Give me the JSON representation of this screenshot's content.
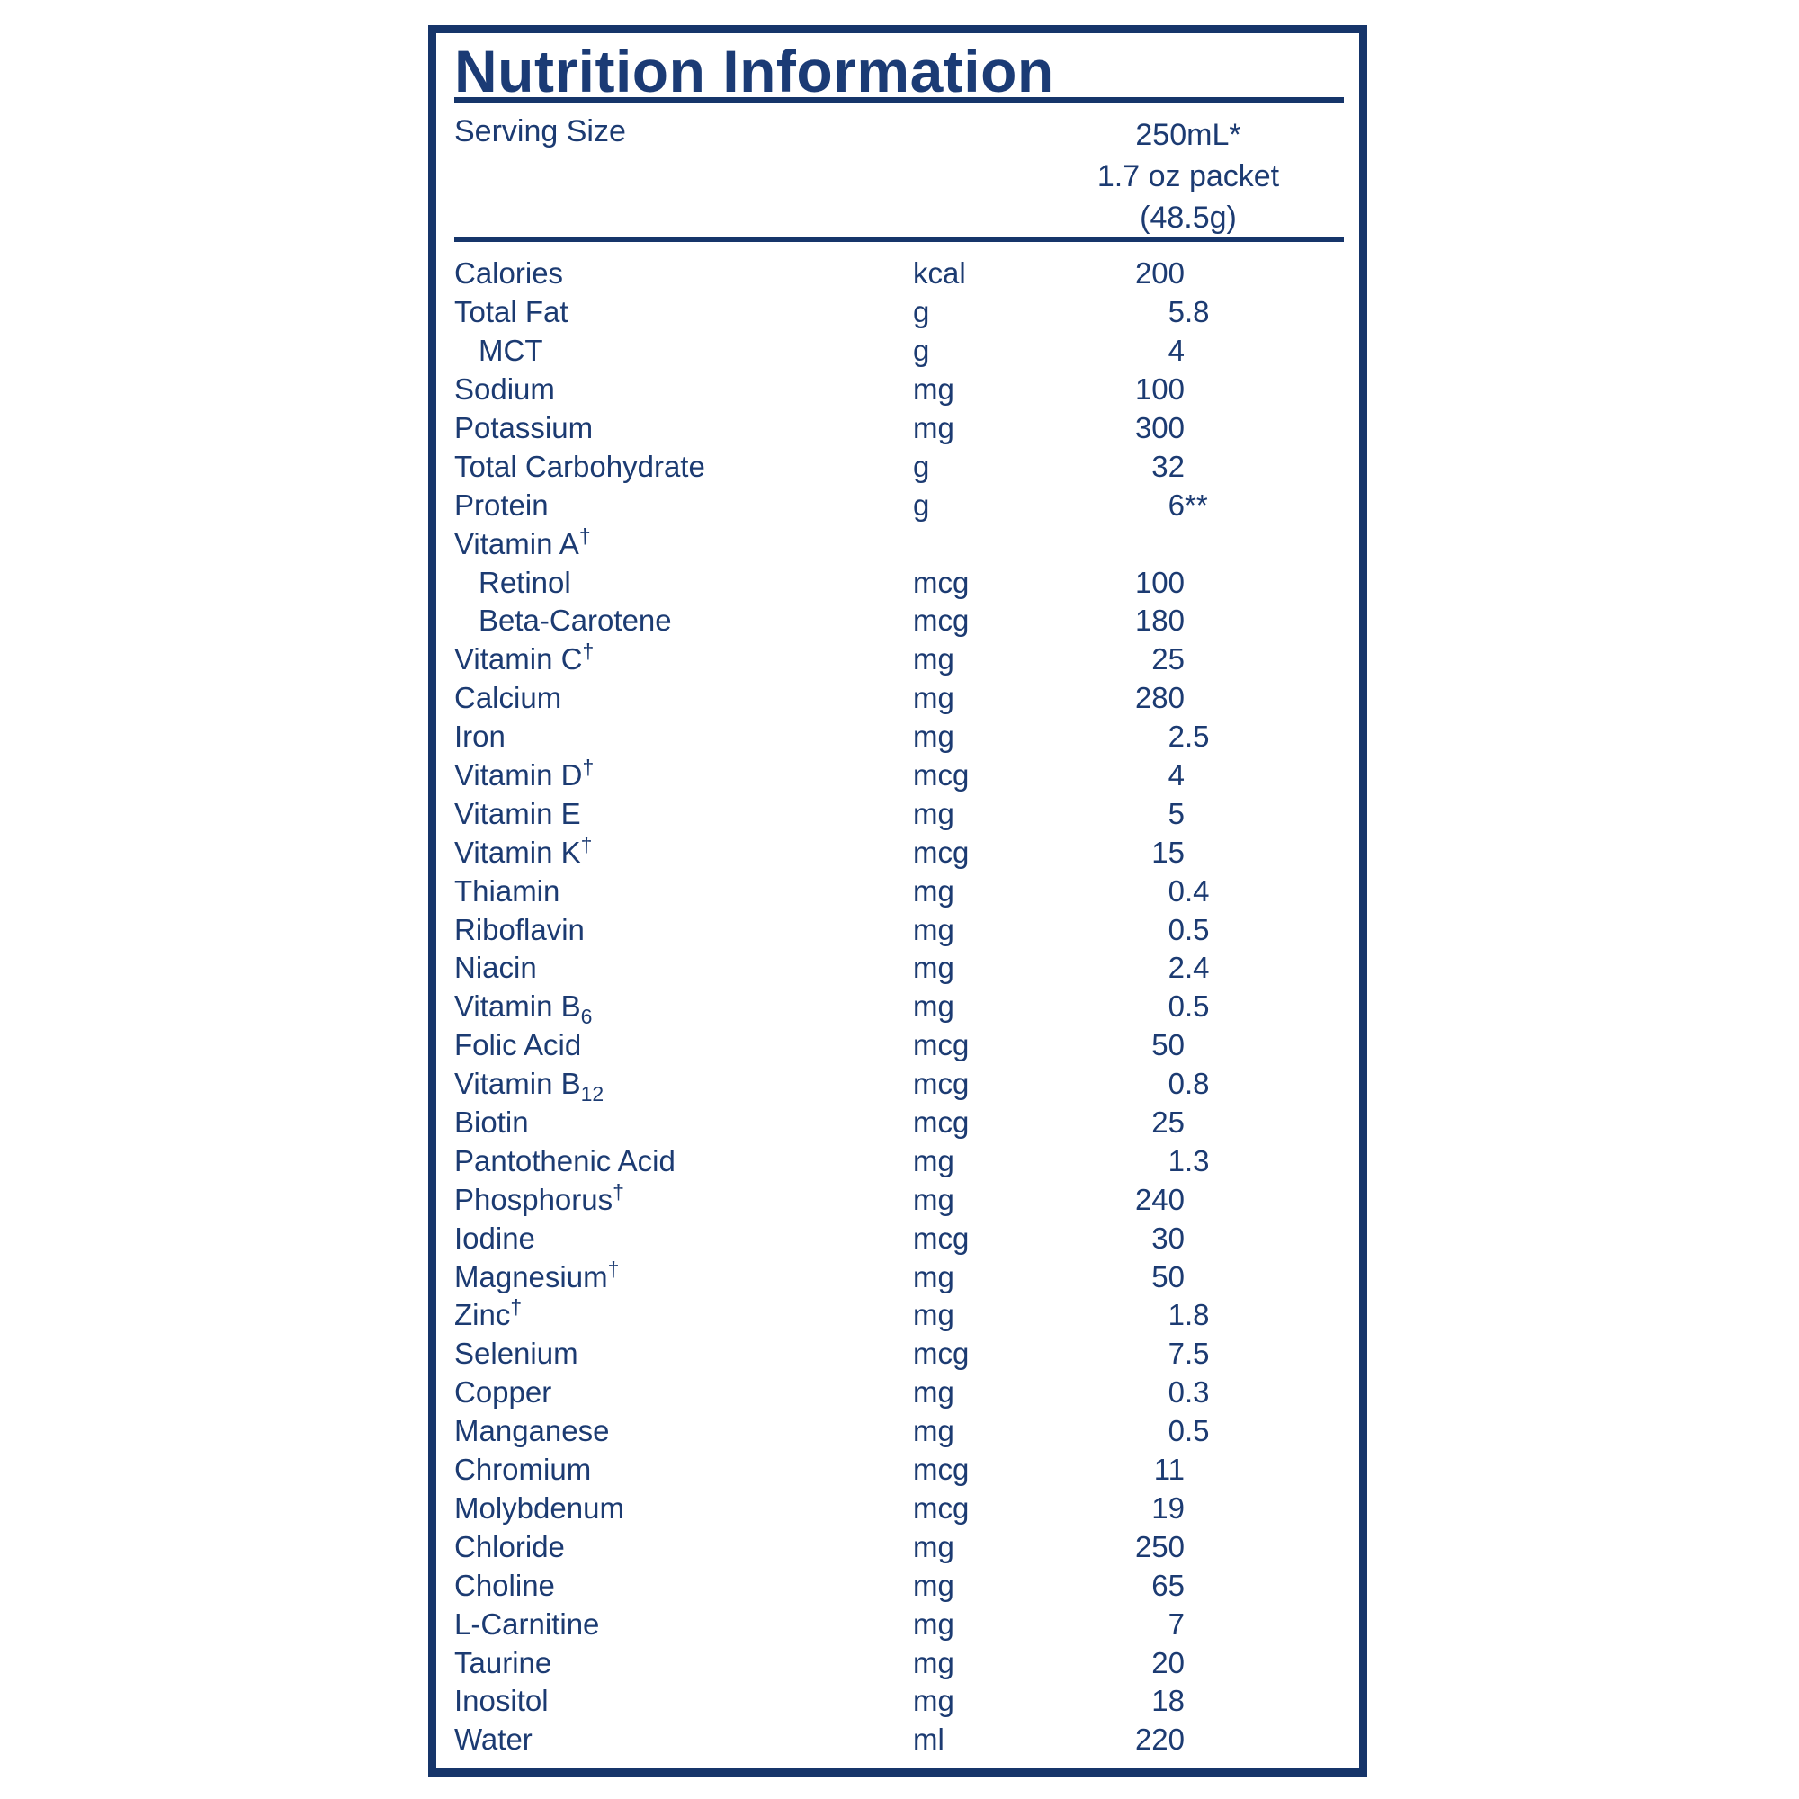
{
  "colors": {
    "navy_text": "#1b3b75",
    "navy_border": "#16356a"
  },
  "label": {
    "title": "Nutrition Information",
    "serving": {
      "label": "Serving Size",
      "lines": [
        "250mL*",
        "1.7 oz packet",
        "(48.5g)"
      ]
    },
    "rows": [
      {
        "name": "Calories",
        "sup": "",
        "sub": "",
        "indent": false,
        "unit": "kcal",
        "int": "200",
        "frac": ""
      },
      {
        "name": "Total Fat",
        "sup": "",
        "sub": "",
        "indent": false,
        "unit": "g",
        "int": "5",
        "frac": ".8"
      },
      {
        "name": "MCT",
        "sup": "",
        "sub": "",
        "indent": true,
        "unit": "g",
        "int": "4",
        "frac": ""
      },
      {
        "name": "Sodium",
        "sup": "",
        "sub": "",
        "indent": false,
        "unit": "mg",
        "int": "100",
        "frac": ""
      },
      {
        "name": "Potassium",
        "sup": "",
        "sub": "",
        "indent": false,
        "unit": "mg",
        "int": "300",
        "frac": ""
      },
      {
        "name": "Total Carbohydrate",
        "sup": "",
        "sub": "",
        "indent": false,
        "unit": "g",
        "int": "32",
        "frac": ""
      },
      {
        "name": "Protein",
        "sup": "",
        "sub": "",
        "indent": false,
        "unit": "g",
        "int": "6",
        "frac": "**"
      },
      {
        "name": "Vitamin A",
        "sup": "†",
        "sub": "",
        "indent": false,
        "unit": "",
        "int": "",
        "frac": ""
      },
      {
        "name": "Retinol",
        "sup": "",
        "sub": "",
        "indent": true,
        "unit": "mcg",
        "int": "100",
        "frac": ""
      },
      {
        "name": "Beta-Carotene",
        "sup": "",
        "sub": "",
        "indent": true,
        "unit": "mcg",
        "int": "180",
        "frac": ""
      },
      {
        "name": "Vitamin C",
        "sup": "†",
        "sub": "",
        "indent": false,
        "unit": "mg",
        "int": "25",
        "frac": ""
      },
      {
        "name": "Calcium",
        "sup": "",
        "sub": "",
        "indent": false,
        "unit": "mg",
        "int": "280",
        "frac": ""
      },
      {
        "name": "Iron",
        "sup": "",
        "sub": "",
        "indent": false,
        "unit": "mg",
        "int": "2",
        "frac": ".5"
      },
      {
        "name": "Vitamin D",
        "sup": "†",
        "sub": "",
        "indent": false,
        "unit": "mcg",
        "int": "4",
        "frac": ""
      },
      {
        "name": "Vitamin E",
        "sup": "",
        "sub": "",
        "indent": false,
        "unit": "mg",
        "int": "5",
        "frac": ""
      },
      {
        "name": "Vitamin K",
        "sup": "†",
        "sub": "",
        "indent": false,
        "unit": "mcg",
        "int": "15",
        "frac": ""
      },
      {
        "name": "Thiamin",
        "sup": "",
        "sub": "",
        "indent": false,
        "unit": "mg",
        "int": "0",
        "frac": ".4"
      },
      {
        "name": "Riboflavin",
        "sup": "",
        "sub": "",
        "indent": false,
        "unit": "mg",
        "int": "0",
        "frac": ".5"
      },
      {
        "name": "Niacin",
        "sup": "",
        "sub": "",
        "indent": false,
        "unit": "mg",
        "int": "2",
        "frac": ".4"
      },
      {
        "name": "Vitamin B",
        "sup": "",
        "sub": "6",
        "indent": false,
        "unit": "mg",
        "int": "0",
        "frac": ".5"
      },
      {
        "name": "Folic Acid",
        "sup": "",
        "sub": "",
        "indent": false,
        "unit": "mcg",
        "int": "50",
        "frac": ""
      },
      {
        "name": "Vitamin B",
        "sup": "",
        "sub": "12",
        "indent": false,
        "unit": "mcg",
        "int": "0",
        "frac": ".8"
      },
      {
        "name": "Biotin",
        "sup": "",
        "sub": "",
        "indent": false,
        "unit": "mcg",
        "int": "25",
        "frac": ""
      },
      {
        "name": "Pantothenic Acid",
        "sup": "",
        "sub": "",
        "indent": false,
        "unit": "mg",
        "int": "1",
        "frac": ".3"
      },
      {
        "name": "Phosphorus",
        "sup": "†",
        "sub": "",
        "indent": false,
        "unit": "mg",
        "int": "240",
        "frac": ""
      },
      {
        "name": "Iodine",
        "sup": "",
        "sub": "",
        "indent": false,
        "unit": "mcg",
        "int": "30",
        "frac": ""
      },
      {
        "name": "Magnesium",
        "sup": "†",
        "sub": "",
        "indent": false,
        "unit": "mg",
        "int": "50",
        "frac": ""
      },
      {
        "name": "Zinc",
        "sup": "†",
        "sub": "",
        "indent": false,
        "unit": "mg",
        "int": "1",
        "frac": ".8"
      },
      {
        "name": "Selenium",
        "sup": "",
        "sub": "",
        "indent": false,
        "unit": "mcg",
        "int": "7",
        "frac": ".5"
      },
      {
        "name": "Copper",
        "sup": "",
        "sub": "",
        "indent": false,
        "unit": "mg",
        "int": "0",
        "frac": ".3"
      },
      {
        "name": "Manganese",
        "sup": "",
        "sub": "",
        "indent": false,
        "unit": "mg",
        "int": "0",
        "frac": ".5"
      },
      {
        "name": "Chromium",
        "sup": "",
        "sub": "",
        "indent": false,
        "unit": "mcg",
        "int": "11",
        "frac": ""
      },
      {
        "name": "Molybdenum",
        "sup": "",
        "sub": "",
        "indent": false,
        "unit": "mcg",
        "int": "19",
        "frac": ""
      },
      {
        "name": "Chloride",
        "sup": "",
        "sub": "",
        "indent": false,
        "unit": "mg",
        "int": "250",
        "frac": ""
      },
      {
        "name": "Choline",
        "sup": "",
        "sub": "",
        "indent": false,
        "unit": "mg",
        "int": "65",
        "frac": ""
      },
      {
        "name": "L-Carnitine",
        "sup": "",
        "sub": "",
        "indent": false,
        "unit": "mg",
        "int": "7",
        "frac": ""
      },
      {
        "name": "Taurine",
        "sup": "",
        "sub": "",
        "indent": false,
        "unit": "mg",
        "int": "20",
        "frac": ""
      },
      {
        "name": "Inositol",
        "sup": "",
        "sub": "",
        "indent": false,
        "unit": "mg",
        "int": "18",
        "frac": ""
      },
      {
        "name": "Water",
        "sup": "",
        "sub": "",
        "indent": false,
        "unit": "ml",
        "int": "220",
        "frac": ""
      }
    ]
  }
}
